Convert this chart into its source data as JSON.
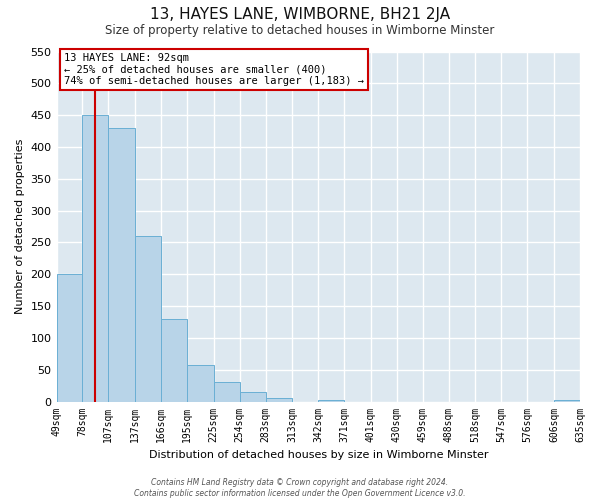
{
  "title": "13, HAYES LANE, WIMBORNE, BH21 2JA",
  "subtitle": "Size of property relative to detached houses in Wimborne Minster",
  "xlabel": "Distribution of detached houses by size in Wimborne Minster",
  "ylabel": "Number of detached properties",
  "footer_lines": [
    "Contains HM Land Registry data © Crown copyright and database right 2024.",
    "Contains public sector information licensed under the Open Government Licence v3.0."
  ],
  "bar_edges": [
    49,
    78,
    107,
    137,
    166,
    195,
    225,
    254,
    283,
    313,
    342,
    371,
    401,
    430,
    459,
    488,
    518,
    547,
    576,
    606,
    635
  ],
  "bar_heights": [
    200,
    450,
    430,
    260,
    130,
    58,
    30,
    15,
    5,
    0,
    2,
    0,
    0,
    0,
    0,
    0,
    0,
    0,
    0,
    2
  ],
  "bar_color": "#b8d4e8",
  "bar_edge_color": "#6aafd4",
  "property_line_x": 92,
  "property_line_color": "#cc0000",
  "ylim": [
    0,
    550
  ],
  "xlim": [
    49,
    635
  ],
  "annotation_line1": "13 HAYES LANE: 92sqm",
  "annotation_line2": "← 25% of detached houses are smaller (400)",
  "annotation_line3": "74% of semi-detached houses are larger (1,183) →",
  "annotation_box_color": "#ffffff",
  "annotation_box_edge_color": "#cc0000",
  "fig_background_color": "#ffffff",
  "plot_bg_color": "#dde8f0",
  "grid_color": "#ffffff",
  "tick_labels": [
    "49sqm",
    "78sqm",
    "107sqm",
    "137sqm",
    "166sqm",
    "195sqm",
    "225sqm",
    "254sqm",
    "283sqm",
    "313sqm",
    "342sqm",
    "371sqm",
    "401sqm",
    "430sqm",
    "459sqm",
    "488sqm",
    "518sqm",
    "547sqm",
    "576sqm",
    "606sqm",
    "635sqm"
  ]
}
